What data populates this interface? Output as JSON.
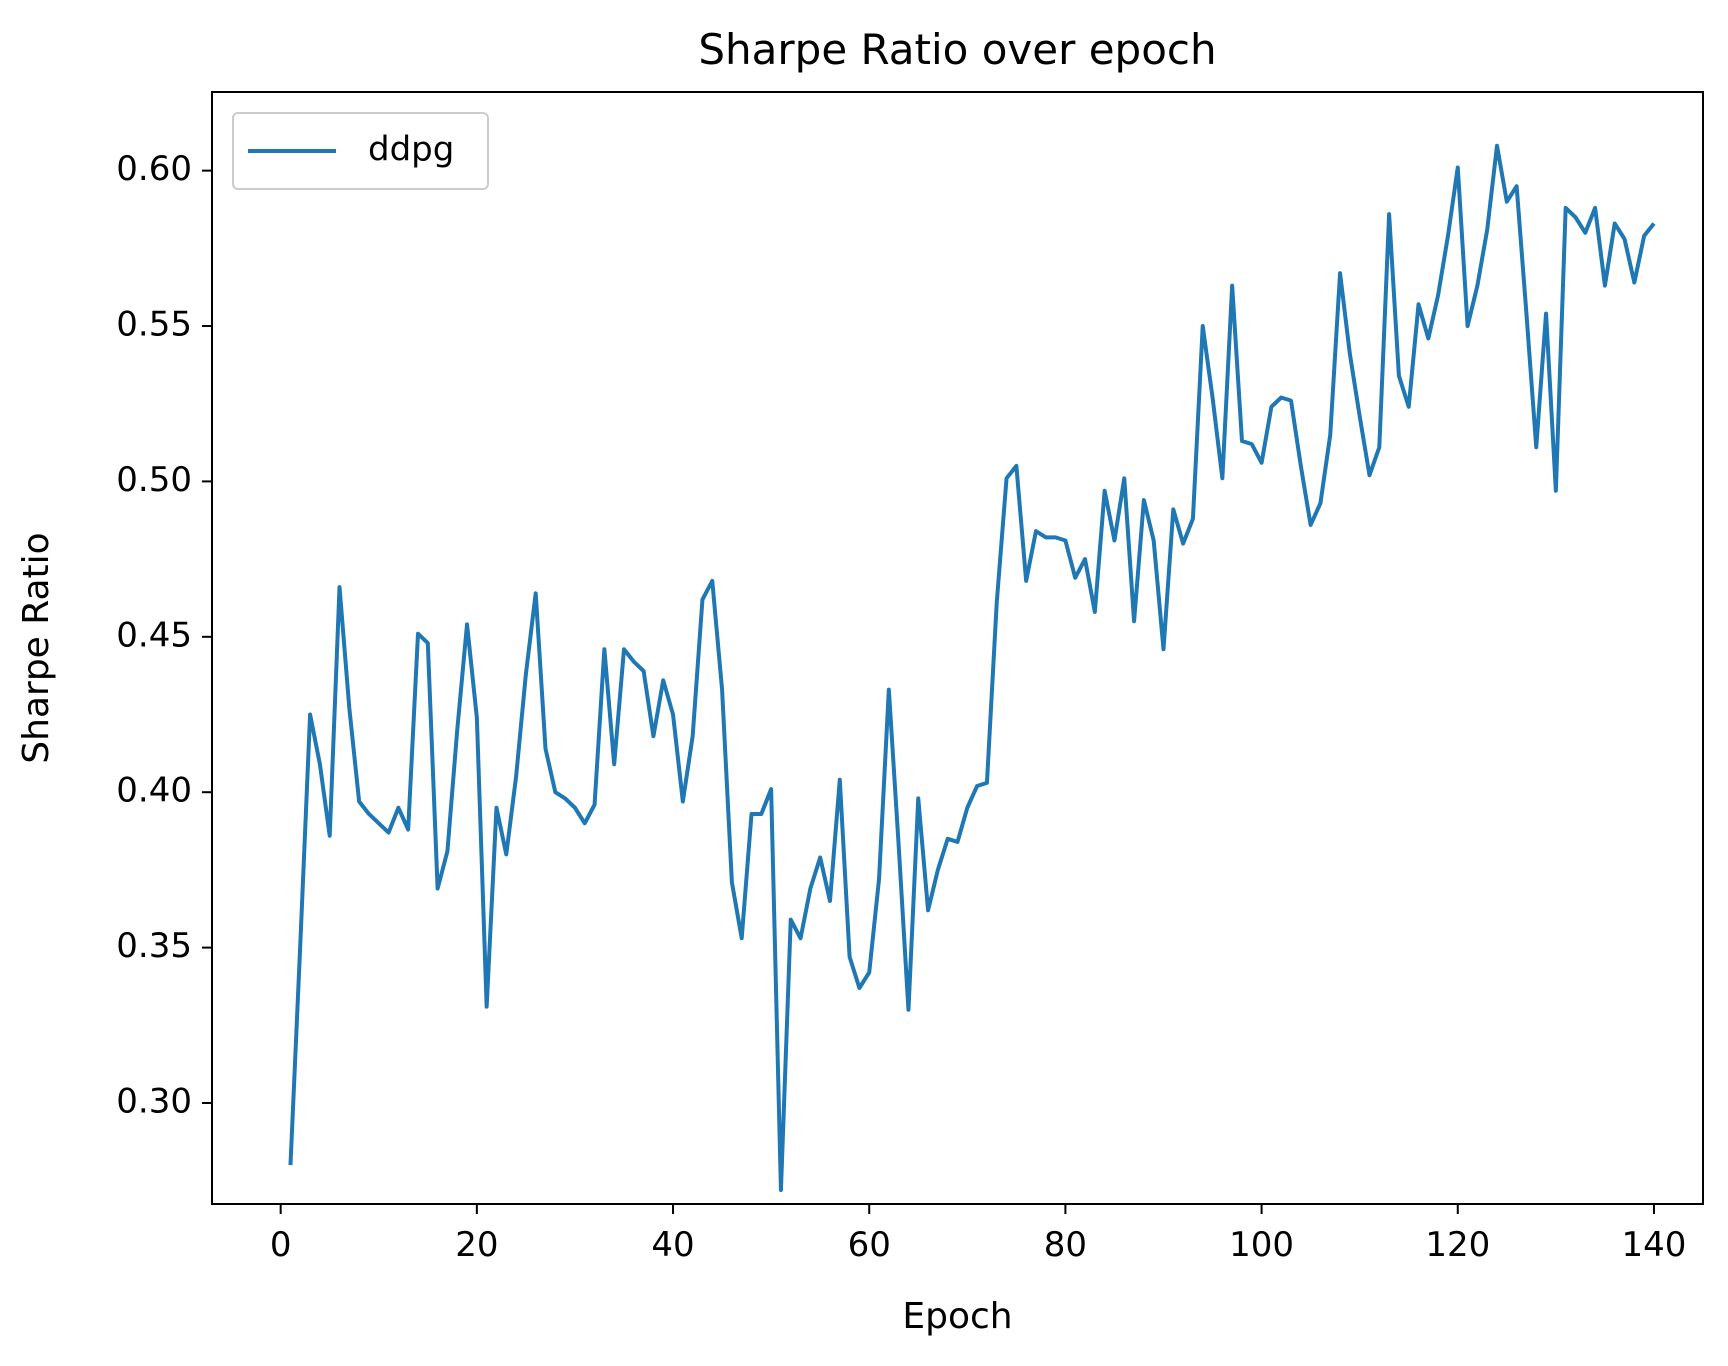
{
  "chart_data": {
    "type": "line",
    "title": "Sharpe Ratio over epoch",
    "xlabel": "Epoch",
    "ylabel": "Sharpe Ratio",
    "xlim": [
      -7,
      145
    ],
    "ylim": [
      0.2675,
      0.6253
    ],
    "xticks": [
      0,
      20,
      40,
      60,
      80,
      100,
      120,
      140
    ],
    "xtick_labels": [
      "0",
      "20",
      "40",
      "60",
      "80",
      "100",
      "120",
      "140"
    ],
    "yticks": [
      0.3,
      0.35,
      0.4,
      0.45,
      0.5,
      0.55,
      0.6
    ],
    "ytick_labels": [
      "0.30",
      "0.35",
      "0.40",
      "0.45",
      "0.50",
      "0.55",
      "0.60"
    ],
    "grid": false,
    "legend": {
      "position": "top-left",
      "entries": [
        "ddpg"
      ]
    },
    "series": [
      {
        "name": "ddpg",
        "color": "#1f77b4",
        "x": [
          1,
          2,
          3,
          4,
          5,
          6,
          7,
          8,
          9,
          10,
          11,
          12,
          13,
          14,
          15,
          16,
          17,
          18,
          19,
          20,
          21,
          22,
          23,
          24,
          25,
          26,
          27,
          28,
          29,
          30,
          31,
          32,
          33,
          34,
          35,
          36,
          37,
          38,
          39,
          40,
          41,
          42,
          43,
          44,
          45,
          46,
          47,
          48,
          49,
          50,
          51,
          52,
          53,
          54,
          55,
          56,
          57,
          58,
          59,
          60,
          61,
          62,
          63,
          64,
          65,
          66,
          67,
          68,
          69,
          70,
          71,
          72,
          73,
          74,
          75,
          76,
          77,
          78,
          79,
          80,
          81,
          82,
          83,
          84,
          85,
          86,
          87,
          88,
          89,
          90,
          91,
          92,
          93,
          94,
          95,
          96,
          97,
          98,
          99,
          100,
          101,
          102,
          103,
          104,
          105,
          106,
          107,
          108,
          109,
          110,
          111,
          112,
          113,
          114,
          115,
          116,
          117,
          118,
          119,
          120,
          121,
          122,
          123,
          124,
          125,
          126,
          127,
          128,
          129,
          130,
          131,
          132,
          133,
          134,
          135,
          136,
          137,
          138,
          139,
          140
        ],
        "values": [
          0.28,
          0.351,
          0.425,
          0.409,
          0.386,
          0.466,
          0.427,
          0.397,
          0.393,
          0.39,
          0.387,
          0.395,
          0.388,
          0.451,
          0.448,
          0.369,
          0.381,
          0.42,
          0.454,
          0.424,
          0.331,
          0.395,
          0.38,
          0.405,
          0.438,
          0.464,
          0.414,
          0.4,
          0.398,
          0.395,
          0.39,
          0.396,
          0.446,
          0.409,
          0.446,
          0.442,
          0.439,
          0.418,
          0.436,
          0.425,
          0.397,
          0.418,
          0.462,
          0.468,
          0.433,
          0.371,
          0.353,
          0.393,
          0.393,
          0.401,
          0.272,
          0.359,
          0.353,
          0.369,
          0.379,
          0.365,
          0.404,
          0.347,
          0.337,
          0.342,
          0.372,
          0.433,
          0.383,
          0.33,
          0.398,
          0.362,
          0.375,
          0.385,
          0.384,
          0.395,
          0.402,
          0.403,
          0.461,
          0.501,
          0.505,
          0.468,
          0.484,
          0.482,
          0.482,
          0.481,
          0.469,
          0.475,
          0.458,
          0.497,
          0.481,
          0.501,
          0.455,
          0.494,
          0.481,
          0.446,
          0.491,
          0.48,
          0.488,
          0.55,
          0.527,
          0.501,
          0.563,
          0.513,
          0.512,
          0.506,
          0.524,
          0.527,
          0.526,
          0.505,
          0.486,
          0.493,
          0.515,
          0.567,
          0.541,
          0.521,
          0.502,
          0.511,
          0.586,
          0.534,
          0.524,
          0.557,
          0.546,
          0.56,
          0.579,
          0.601,
          0.55,
          0.563,
          0.581,
          0.608,
          0.59,
          0.595,
          0.554,
          0.511,
          0.554,
          0.497,
          0.588,
          0.585,
          0.58,
          0.588,
          0.563,
          0.583,
          0.578,
          0.564,
          0.579,
          0.583
        ]
      }
    ]
  }
}
